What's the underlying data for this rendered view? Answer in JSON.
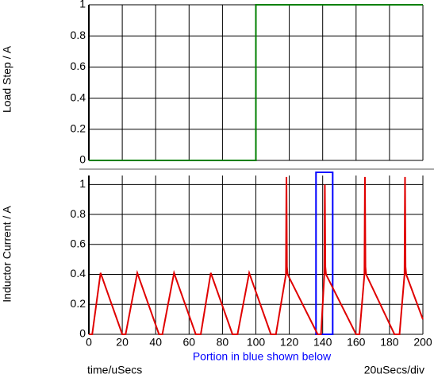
{
  "chart_data": [
    {
      "type": "line",
      "ylabel": "Load Step / A",
      "ylim": [
        0,
        1
      ],
      "yticks": [
        0,
        0.2,
        0.4,
        0.6,
        0.8,
        1
      ],
      "xlim": [
        0,
        200
      ],
      "series": [
        {
          "color": "#008000",
          "x": [
            0,
            100,
            100,
            200
          ],
          "values": [
            0,
            0,
            1,
            1
          ]
        }
      ]
    },
    {
      "type": "line",
      "ylabel": "Inductor Current / A",
      "xlabel": "time/uSecs",
      "ylim": [
        0,
        1.06
      ],
      "yticks": [
        0,
        0.2,
        0.4,
        0.6,
        0.8,
        1
      ],
      "xlim": [
        0,
        200
      ],
      "xticks": [
        0,
        20,
        40,
        60,
        80,
        100,
        120,
        140,
        160,
        180,
        200
      ],
      "annotations": [
        "Portion in blue shown below",
        "20uSecs/div"
      ],
      "highlight": {
        "color": "#0000ff",
        "x": [
          136,
          146
        ]
      },
      "series": [
        {
          "color": "#e00000",
          "x": [
            0,
            2,
            7,
            20,
            22,
            29,
            42,
            44,
            51,
            64,
            67,
            73,
            86,
            89,
            96,
            109,
            112,
            118,
            118.3,
            118.6,
            119,
            137,
            139,
            141,
            141.3,
            141.6,
            142,
            160,
            162,
            165,
            165.3,
            165.6,
            166,
            183,
            186,
            189,
            189.3,
            189.6,
            190,
            200
          ],
          "values": [
            0,
            0,
            0.41,
            0,
            0,
            0.41,
            0,
            0,
            0.41,
            0,
            0,
            0.41,
            0,
            0,
            0.41,
            0,
            0,
            0.4,
            1.05,
            0.45,
            0.4,
            0,
            0,
            0.4,
            1.0,
            0.45,
            0.4,
            0,
            0,
            0.4,
            1.05,
            0.45,
            0.4,
            0,
            0,
            0.4,
            1.05,
            0.45,
            0.4,
            0.1
          ]
        }
      ]
    }
  ]
}
